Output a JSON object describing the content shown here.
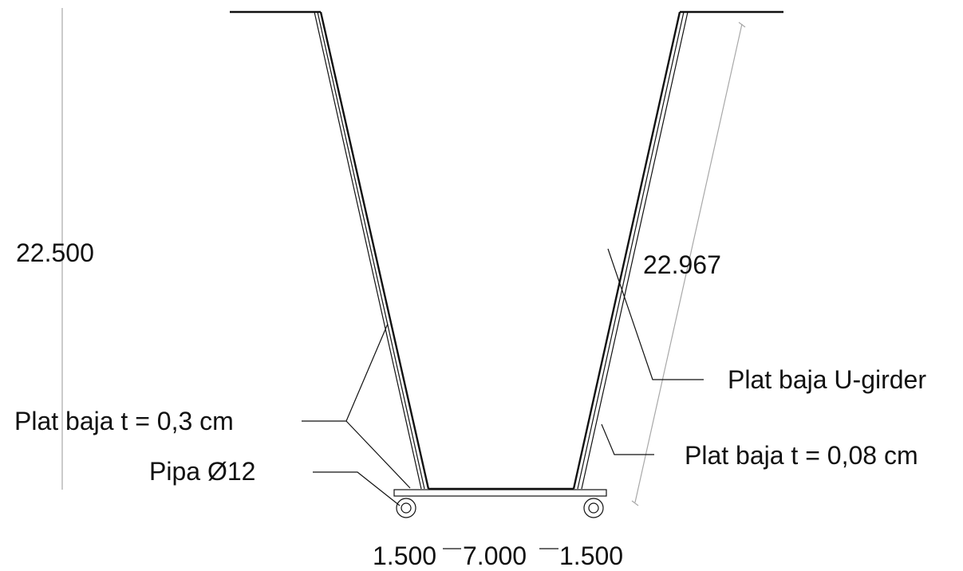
{
  "dimensions": {
    "height": "22.500",
    "slope_length": "22.967",
    "bottom_left": "1.500",
    "bottom_center": "7.000",
    "bottom_right": "1.500"
  },
  "labels": {
    "u_girder": "Plat baja U-girder",
    "plate_03": "Plat baja t = 0,3 cm",
    "plate_008": "Plat baja t = 0,08 cm",
    "pipe": "Pipa Ø12"
  }
}
